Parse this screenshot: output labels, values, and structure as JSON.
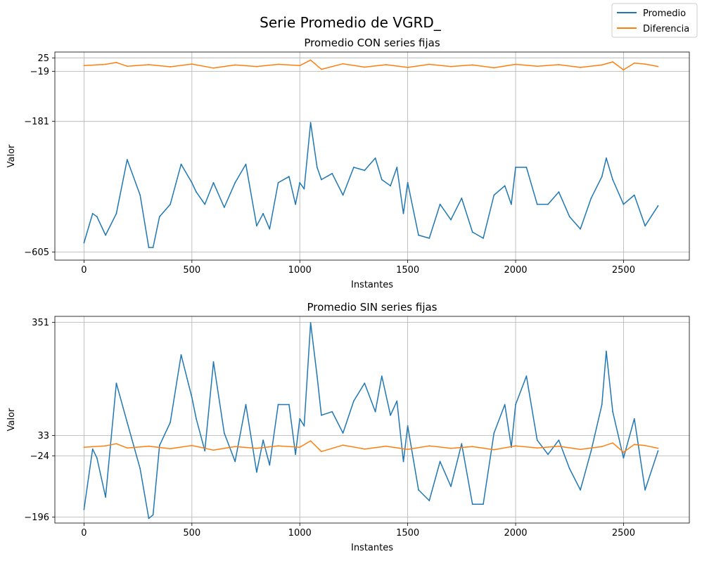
{
  "figure": {
    "title": "Serie Promedio de VGRD_",
    "legend": [
      {
        "label": "Promedio",
        "color": "#1f77b4"
      },
      {
        "label": "Diferencia",
        "color": "#ff7f0e"
      }
    ]
  },
  "colors": {
    "promedio": "#1f77b4",
    "diferencia": "#ff7f0e",
    "grid": "#b0b0b0"
  },
  "chart_data": [
    {
      "type": "line",
      "title": "Promedio CON series fijas",
      "xlabel": "Instantes",
      "ylabel": "Valor",
      "xlim": [
        -135,
        2805
      ],
      "ylim": [
        -631,
        44
      ],
      "xticks": [
        0,
        500,
        1000,
        1500,
        2000,
        2500
      ],
      "yticks": [
        25,
        -19,
        -181,
        -605
      ],
      "grid": true,
      "series": [
        {
          "name": "Promedio",
          "color": "#1f77b4",
          "x": [
            0,
            40,
            60,
            100,
            150,
            200,
            260,
            300,
            320,
            350,
            400,
            450,
            500,
            520,
            560,
            600,
            650,
            700,
            750,
            800,
            830,
            860,
            900,
            950,
            980,
            1000,
            1020,
            1050,
            1080,
            1100,
            1150,
            1200,
            1250,
            1300,
            1350,
            1380,
            1420,
            1450,
            1480,
            1500,
            1550,
            1600,
            1650,
            1700,
            1750,
            1800,
            1850,
            1900,
            1950,
            1980,
            2000,
            2050,
            2100,
            2150,
            2200,
            2250,
            2300,
            2350,
            2400,
            2420,
            2450,
            2500,
            2550,
            2600,
            2660
          ],
          "values": [
            -575,
            -480,
            -490,
            -550,
            -480,
            -305,
            -420,
            -590,
            -590,
            -490,
            -450,
            -320,
            -380,
            -410,
            -450,
            -380,
            -460,
            -380,
            -320,
            -520,
            -480,
            -530,
            -380,
            -360,
            -450,
            -380,
            -400,
            -185,
            -330,
            -370,
            -350,
            -420,
            -330,
            -340,
            -300,
            -370,
            -390,
            -330,
            -480,
            -380,
            -550,
            -560,
            -450,
            -500,
            -430,
            -540,
            -560,
            -420,
            -390,
            -450,
            -330,
            -330,
            -450,
            -450,
            -410,
            -490,
            -530,
            -430,
            -360,
            -300,
            -370,
            -450,
            -420,
            -520,
            -455
          ]
        },
        {
          "name": "Diferencia",
          "color": "#ff7f0e",
          "x": [
            0,
            100,
            150,
            200,
            300,
            400,
            500,
            600,
            700,
            800,
            900,
            1000,
            1050,
            1100,
            1200,
            1300,
            1400,
            1500,
            1600,
            1700,
            1800,
            1900,
            2000,
            2100,
            2200,
            2300,
            2400,
            2450,
            2500,
            2550,
            2600,
            2660
          ],
          "values": [
            0,
            4,
            10,
            -2,
            3,
            -4,
            5,
            -8,
            2,
            -3,
            4,
            0,
            18,
            -12,
            6,
            -5,
            3,
            -6,
            4,
            -3,
            2,
            -7,
            4,
            -2,
            3,
            -6,
            2,
            12,
            -14,
            8,
            5,
            -3
          ]
        }
      ]
    },
    {
      "type": "line",
      "title": "Promedio SIN series fijas",
      "xlabel": "Instantes",
      "ylabel": "Valor",
      "xlim": [
        -135,
        2805
      ],
      "ylim": [
        -213,
        368
      ],
      "xticks": [
        0,
        500,
        1000,
        1500,
        2000,
        2500
      ],
      "yticks": [
        351,
        33,
        -24,
        -196
      ],
      "grid": true,
      "series": [
        {
          "name": "Promedio",
          "color": "#1f77b4",
          "x": [
            0,
            40,
            60,
            100,
            150,
            200,
            260,
            300,
            320,
            350,
            400,
            450,
            500,
            520,
            560,
            600,
            650,
            700,
            750,
            800,
            830,
            860,
            900,
            950,
            980,
            1000,
            1020,
            1050,
            1080,
            1100,
            1150,
            1200,
            1250,
            1300,
            1350,
            1380,
            1420,
            1450,
            1480,
            1500,
            1550,
            1600,
            1650,
            1700,
            1750,
            1800,
            1850,
            1900,
            1950,
            1980,
            2000,
            2050,
            2100,
            2150,
            2200,
            2250,
            2300,
            2350,
            2400,
            2420,
            2450,
            2500,
            2550,
            2600,
            2660
          ],
          "values": [
            -175,
            -5,
            -30,
            -140,
            180,
            70,
            -60,
            -200,
            -190,
            5,
            70,
            260,
            140,
            80,
            -10,
            240,
            40,
            -40,
            120,
            -70,
            20,
            -50,
            120,
            120,
            -20,
            80,
            60,
            350,
            200,
            90,
            100,
            40,
            130,
            180,
            100,
            200,
            90,
            130,
            -40,
            60,
            -120,
            -150,
            -40,
            -110,
            10,
            -160,
            -160,
            40,
            120,
            0,
            120,
            200,
            20,
            -20,
            20,
            -60,
            -120,
            -10,
            120,
            270,
            100,
            -30,
            80,
            -120,
            -10
          ]
        },
        {
          "name": "Diferencia",
          "color": "#ff7f0e",
          "x": [
            0,
            100,
            150,
            200,
            300,
            400,
            500,
            600,
            700,
            800,
            900,
            1000,
            1050,
            1100,
            1200,
            1300,
            1400,
            1500,
            1600,
            1700,
            1800,
            1900,
            2000,
            2100,
            2200,
            2300,
            2400,
            2450,
            2500,
            2550,
            2600,
            2660
          ],
          "values": [
            0,
            4,
            10,
            -2,
            3,
            -4,
            5,
            -8,
            2,
            -3,
            4,
            0,
            18,
            -12,
            6,
            -5,
            3,
            -6,
            4,
            -3,
            2,
            -7,
            4,
            -2,
            3,
            -6,
            2,
            12,
            -14,
            8,
            5,
            -3
          ]
        }
      ]
    }
  ]
}
